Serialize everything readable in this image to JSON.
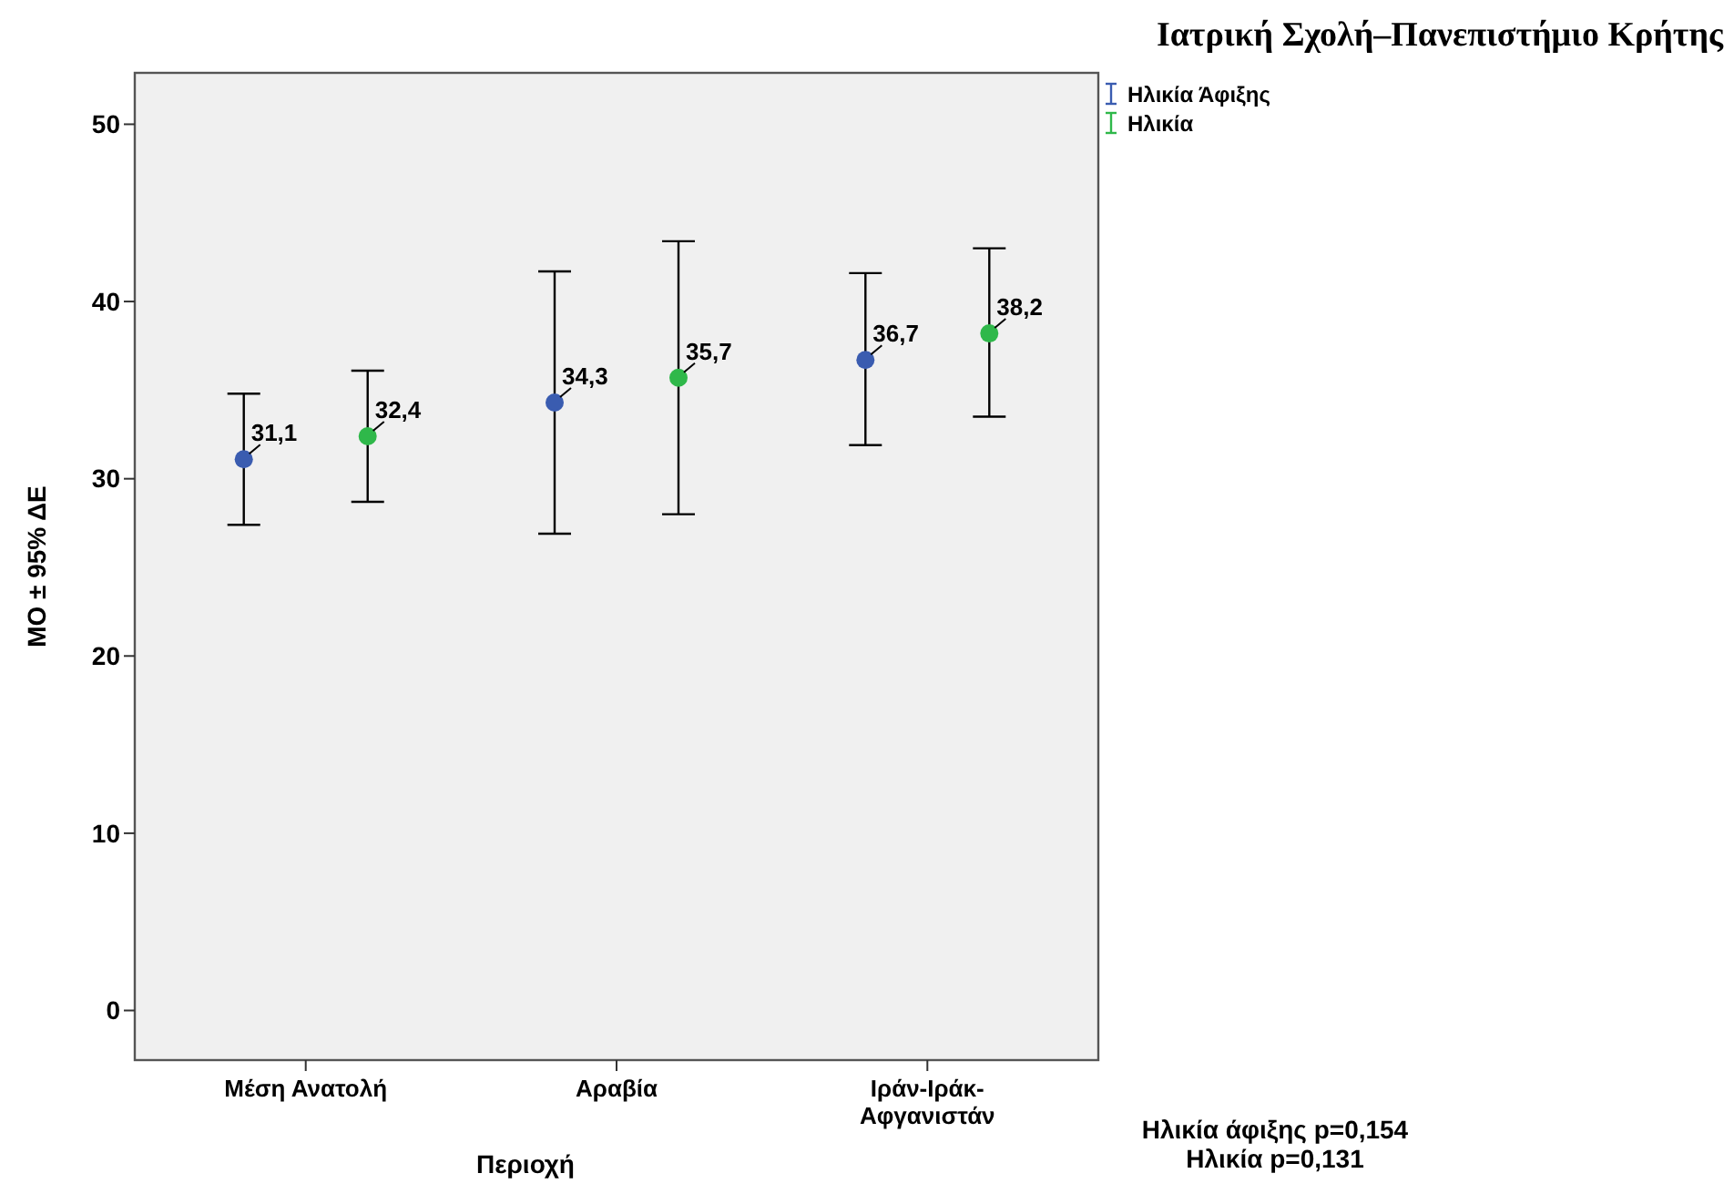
{
  "chart_data": {
    "type": "scatter",
    "title": "Ιατρική Σχολή–Πανεπιστήμιο Κρήτης",
    "xlabel": "Περιοχή",
    "ylabel": "ΜΟ ± 95% ΔΕ",
    "categories": [
      "Μέση Ανατολή",
      "Αραβία",
      "Ιράν-Ιράκ-Αφγανιστάν"
    ],
    "series": [
      {
        "name": "Ηλικία Άφιξης",
        "color": "#3a5cb0",
        "values": [
          31.1,
          34.3,
          36.7
        ],
        "errors": [
          [
            27.4,
            34.8
          ],
          [
            26.9,
            41.7
          ],
          [
            31.9,
            41.6
          ]
        ],
        "value_labels": [
          "31,1",
          "34,3",
          "36,7"
        ]
      },
      {
        "name": "Ηλικία",
        "color": "#2fb84a",
        "values": [
          32.4,
          35.7,
          38.2
        ],
        "errors": [
          [
            28.7,
            36.1
          ],
          [
            28.0,
            43.4
          ],
          [
            33.5,
            43.0
          ]
        ],
        "value_labels": [
          "32,4",
          "35,7",
          "38,2"
        ]
      }
    ],
    "ylim": [
      -2.8,
      52.9
    ],
    "yticks": [
      0,
      10,
      20,
      30,
      40,
      50
    ],
    "grid": false,
    "legend": "top right",
    "marker": "circle",
    "annotations": [
      "Ηλικία άφιξης p=0,154",
      "Ηλικία p=0,131"
    ]
  }
}
